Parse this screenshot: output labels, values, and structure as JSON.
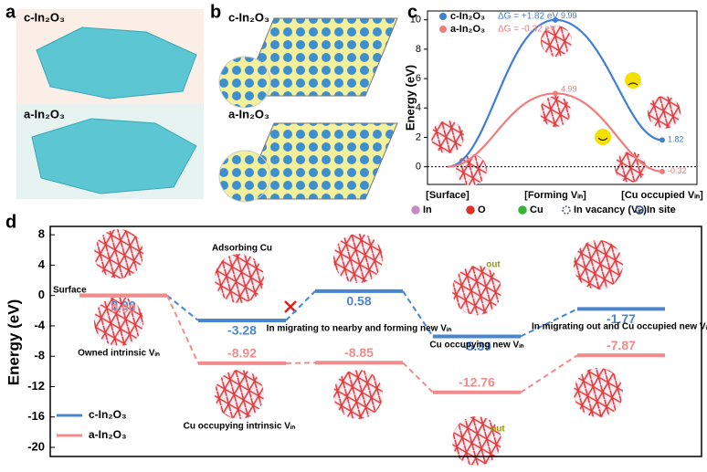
{
  "panels": {
    "labels": [
      "a",
      "b",
      "c",
      "d"
    ],
    "a": {
      "top": "c-In₂O₃",
      "bottom": "a-In₂O₃"
    },
    "b": {
      "top": "c-In₂O₃",
      "bottom": "a-In₂O₃"
    }
  },
  "chart_data": [
    {
      "type": "line",
      "ylabel": "Energy (eV)",
      "categories": [
        "[Surface]",
        "[Forming Vᵢₙ]",
        "[Cu occupied Vᵢₙ]"
      ],
      "series": [
        {
          "name": "c-In₂O₃",
          "note": "ΔG = +1.82 eV",
          "color": "#3f7fd6",
          "values": [
            0,
            9.99,
            1.82
          ]
        },
        {
          "name": "a-In₂O₃",
          "note": "ΔG = -0.32 eV",
          "color": "#f07c7c",
          "values": [
            0,
            4.99,
            -0.32
          ]
        }
      ],
      "ylim": [
        -1.2,
        10.6
      ],
      "yticks": [
        0,
        2,
        4,
        6,
        8,
        10
      ],
      "zero_line": true,
      "marker_legend": [
        {
          "name": "In",
          "color": "#c78ac7"
        },
        {
          "name": "O",
          "color": "#e0302a"
        },
        {
          "name": "Cu",
          "color": "#35b535"
        },
        {
          "name": "In vacancy (Vᵢₙ)",
          "color": "#445577"
        },
        {
          "name": "In site",
          "color": "#23407a"
        }
      ]
    },
    {
      "type": "step",
      "ylabel": "Energy (eV)",
      "series": [
        {
          "name": "c-In₂O₃",
          "color": "#4a86cf",
          "values": [
            0,
            -3.28,
            0.58,
            -5.39,
            -1.77
          ],
          "value_labels": [
            "0.00",
            "-3.28",
            "0.58",
            "-5.39",
            "-1.77"
          ]
        },
        {
          "name": "a-In₂O₃",
          "color": "#f28b8b",
          "values": [
            0,
            -8.92,
            -8.85,
            -12.76,
            -7.87
          ],
          "value_labels": [
            "0.00",
            "-8.92",
            "-8.85",
            "-12.76",
            "-7.87"
          ]
        }
      ],
      "ylim": [
        -21.2,
        9.1
      ],
      "yticks": [
        8,
        4,
        0,
        -4,
        -8,
        -12,
        -16,
        -20
      ],
      "legend": "bottom-left",
      "annotations": [
        "Surface",
        "Adsorbing Cu",
        "In migrating to nearby and forming new Vᵢₙ",
        "Cu occupying new Vᵢₙ",
        "In migrating out and Cu occupied new Vᵢₙ",
        "Owned intrinsic Vᵢₙ",
        "Cu occupying intrinsic Vᵢₙ",
        "out",
        "out"
      ]
    }
  ]
}
